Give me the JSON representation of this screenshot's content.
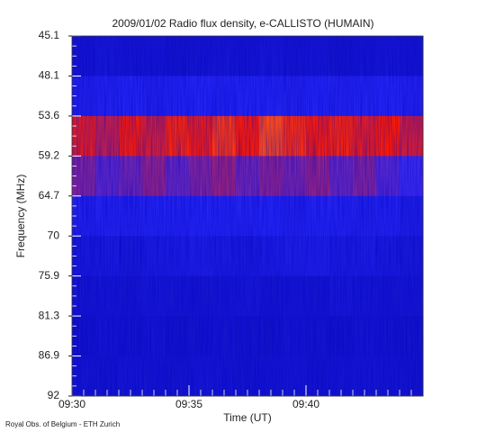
{
  "chart_data": {
    "type": "heatmap",
    "title": "2009/01/02  Radio flux density, e-CALLISTO (HUMAIN)",
    "xlabel": "Time (UT)",
    "ylabel": "Frequency (MHz)",
    "footer": "Royal Obs. of Belgium - ETH Zurich",
    "x": [
      "09:30",
      null,
      null,
      null,
      null,
      "09:35",
      null,
      null,
      null,
      null,
      "09:40",
      null,
      null,
      null,
      null
    ],
    "ybins": [
      45.1,
      48.1,
      53.6,
      59.2,
      64.7,
      70.0,
      75.9,
      81.3,
      86.9,
      92.0
    ],
    "vlim": [
      0,
      100
    ],
    "colors": [
      "#000022",
      "#1010c0",
      "#2a2aff",
      "#ff1a00",
      "#ffff70"
    ],
    "values": [
      [
        30,
        32,
        30,
        31,
        29,
        30,
        31,
        30,
        32,
        30,
        31,
        29,
        30,
        31,
        30
      ],
      [
        40,
        42,
        44,
        41,
        43,
        45,
        42,
        44,
        43,
        41,
        44,
        42,
        43,
        45,
        42
      ],
      [
        72,
        68,
        74,
        70,
        76,
        73,
        78,
        75,
        80,
        77,
        74,
        76,
        72,
        75,
        70
      ],
      [
        60,
        56,
        58,
        62,
        57,
        60,
        63,
        58,
        61,
        59,
        62,
        57,
        60,
        55,
        52
      ],
      [
        40,
        42,
        41,
        43,
        42,
        44,
        43,
        42,
        44,
        41,
        43,
        42,
        40,
        42,
        38
      ],
      [
        34,
        35,
        33,
        36,
        37,
        38,
        36,
        35,
        37,
        38,
        39,
        36,
        37,
        35,
        33
      ],
      [
        30,
        31,
        30,
        32,
        31,
        30,
        31,
        32,
        30,
        31,
        30,
        32,
        31,
        30,
        31
      ],
      [
        28,
        30,
        29,
        30,
        28,
        29,
        30,
        29,
        28,
        30,
        29,
        28,
        30,
        29,
        28
      ],
      [
        30,
        29,
        31,
        30,
        29,
        31,
        30,
        29,
        30,
        31,
        29,
        30,
        31,
        30,
        29
      ]
    ]
  }
}
